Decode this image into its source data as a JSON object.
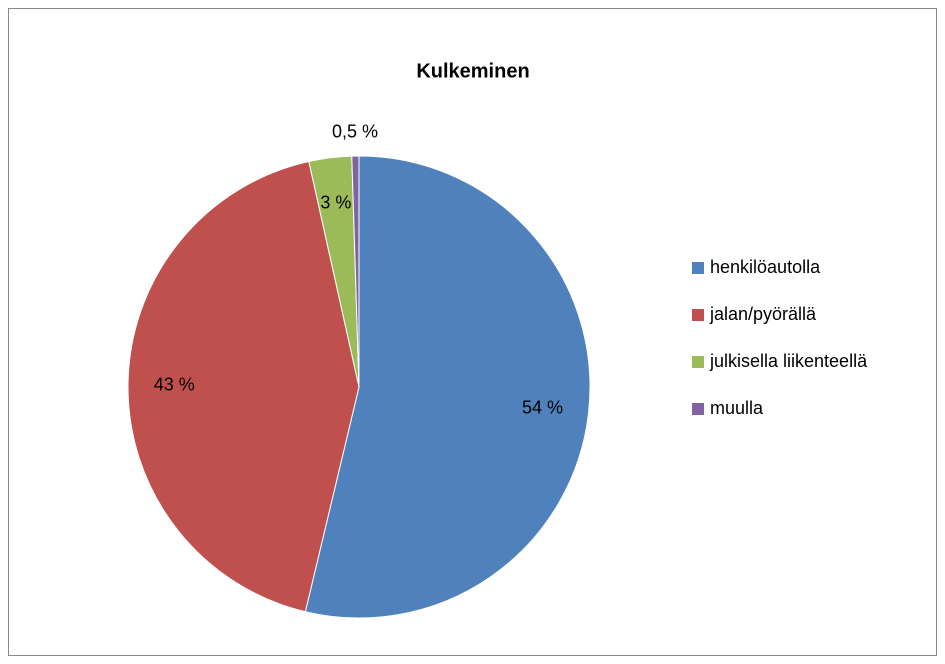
{
  "chart_data": {
    "type": "pie",
    "title": "Kulkeminen",
    "categories": [
      "henkilöautolla",
      "jalan/pyörällä",
      "julkisella liikenteellä",
      "muulla"
    ],
    "values": [
      54,
      43,
      3,
      0.5
    ],
    "value_labels": [
      "54 %",
      "43 %",
      "3 %",
      "0,5 %"
    ],
    "colors": [
      "#4f81bd",
      "#c0504d",
      "#9bbb59",
      "#8064a2"
    ],
    "legend": "right"
  }
}
